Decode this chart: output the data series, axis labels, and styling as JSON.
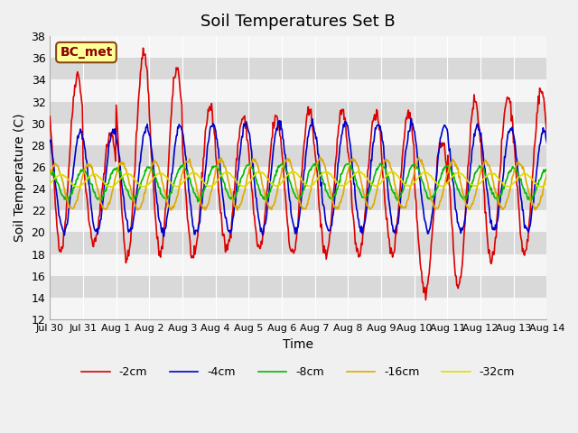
{
  "title": "Soil Temperatures Set B",
  "xlabel": "Time",
  "ylabel": "Soil Temperature (C)",
  "ylim": [
    12,
    38
  ],
  "annotation": "BC_met",
  "legend": [
    "-2cm",
    "-4cm",
    "-8cm",
    "-16cm",
    "-32cm"
  ],
  "colors": [
    "#dd0000",
    "#0000cc",
    "#00bb00",
    "#ddaa00",
    "#dddd00"
  ],
  "xtick_labels": [
    "Jul 30",
    "Jul 31",
    "Aug 1",
    "Aug 2",
    "Aug 3",
    "Aug 4",
    "Aug 5",
    "Aug 6",
    "Aug 7",
    "Aug 8",
    "Aug 9",
    "Aug 10",
    "Aug 11",
    "Aug 12",
    "Aug 13",
    "Aug 14"
  ],
  "num_days": 16,
  "points_per_day": 48,
  "title_fontsize": 13,
  "label_fontsize": 10
}
